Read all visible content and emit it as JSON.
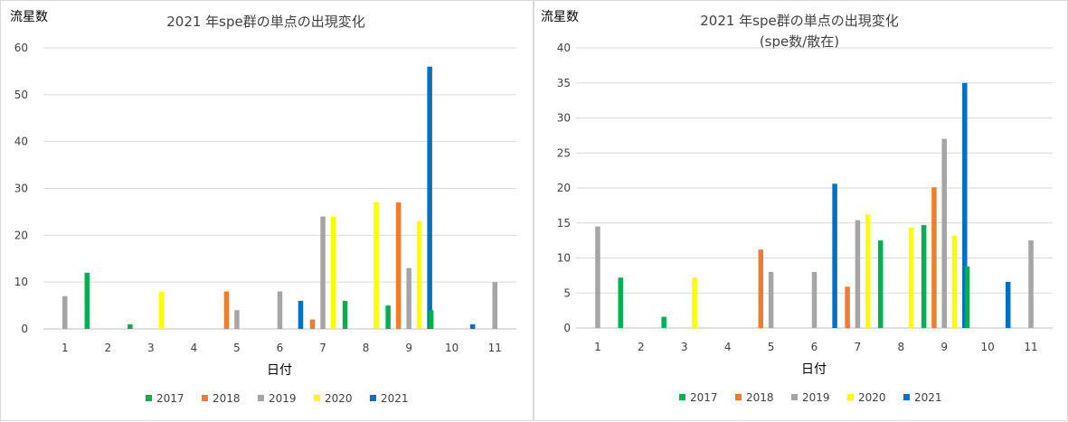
{
  "colors": {
    "2017": "#00b050",
    "2018": "#ed7d31",
    "2019": "#a5a5a5",
    "2020": "#ffff00",
    "2021": "#0070c0",
    "grid": "#d9d9d9",
    "axis": "#bfbfbf"
  },
  "chart_data": [
    {
      "type": "bar",
      "title": "2021 年spe群の単点の出現変化",
      "subtitle": "",
      "ylabel": "流星数",
      "xlabel": "日付",
      "categories": [
        "1",
        "2",
        "3",
        "4",
        "5",
        "6",
        "7",
        "8",
        "9",
        "10",
        "11"
      ],
      "ylim": [
        0,
        60
      ],
      "yticks": [
        "0",
        "10",
        "20",
        "30",
        "40",
        "50",
        "60"
      ],
      "grid": true,
      "legend_position": "bottom",
      "series": [
        {
          "name": "2017",
          "values": [
            0,
            12,
            1,
            0,
            0,
            0,
            0,
            6,
            5,
            4,
            0
          ]
        },
        {
          "name": "2018",
          "values": [
            0,
            0,
            0,
            0,
            8,
            0,
            2,
            0,
            27,
            0,
            0
          ]
        },
        {
          "name": "2019",
          "values": [
            7,
            0,
            0,
            0,
            4,
            8,
            24,
            0,
            13,
            0,
            10
          ]
        },
        {
          "name": "2020",
          "values": [
            0,
            0,
            8,
            0,
            0,
            0,
            24,
            27,
            23,
            0,
            0
          ]
        },
        {
          "name": "2021",
          "values": [
            0,
            0,
            0,
            0,
            0,
            6,
            0,
            0,
            56,
            1,
            0
          ]
        }
      ]
    },
    {
      "type": "bar",
      "title": "2021 年spe群の単点の出現変化",
      "subtitle": "(spe数/散在)",
      "ylabel": "流星数",
      "xlabel": "日付",
      "categories": [
        "1",
        "2",
        "3",
        "4",
        "5",
        "6",
        "7",
        "8",
        "9",
        "10",
        "11"
      ],
      "ylim": [
        0,
        40
      ],
      "yticks": [
        "0",
        "5",
        "10",
        "15",
        "20",
        "25",
        "30",
        "35",
        "40"
      ],
      "grid": true,
      "legend_position": "bottom",
      "series": [
        {
          "name": "2017",
          "values": [
            0,
            7.2,
            1.6,
            0,
            0,
            0,
            0,
            12.5,
            14.7,
            8.8,
            0
          ]
        },
        {
          "name": "2018",
          "values": [
            0,
            0,
            0,
            0,
            11.2,
            0,
            5.9,
            0,
            20.1,
            0,
            0
          ]
        },
        {
          "name": "2019",
          "values": [
            14.5,
            0,
            0,
            0,
            8.0,
            8.0,
            15.4,
            0,
            27.0,
            0,
            12.5
          ]
        },
        {
          "name": "2020",
          "values": [
            0,
            0,
            7.2,
            0,
            0,
            0,
            16.2,
            14.3,
            13.2,
            0,
            0
          ]
        },
        {
          "name": "2021",
          "values": [
            0,
            0,
            0,
            0,
            0,
            20.6,
            0,
            0,
            35.0,
            6.6,
            0
          ]
        }
      ]
    }
  ]
}
